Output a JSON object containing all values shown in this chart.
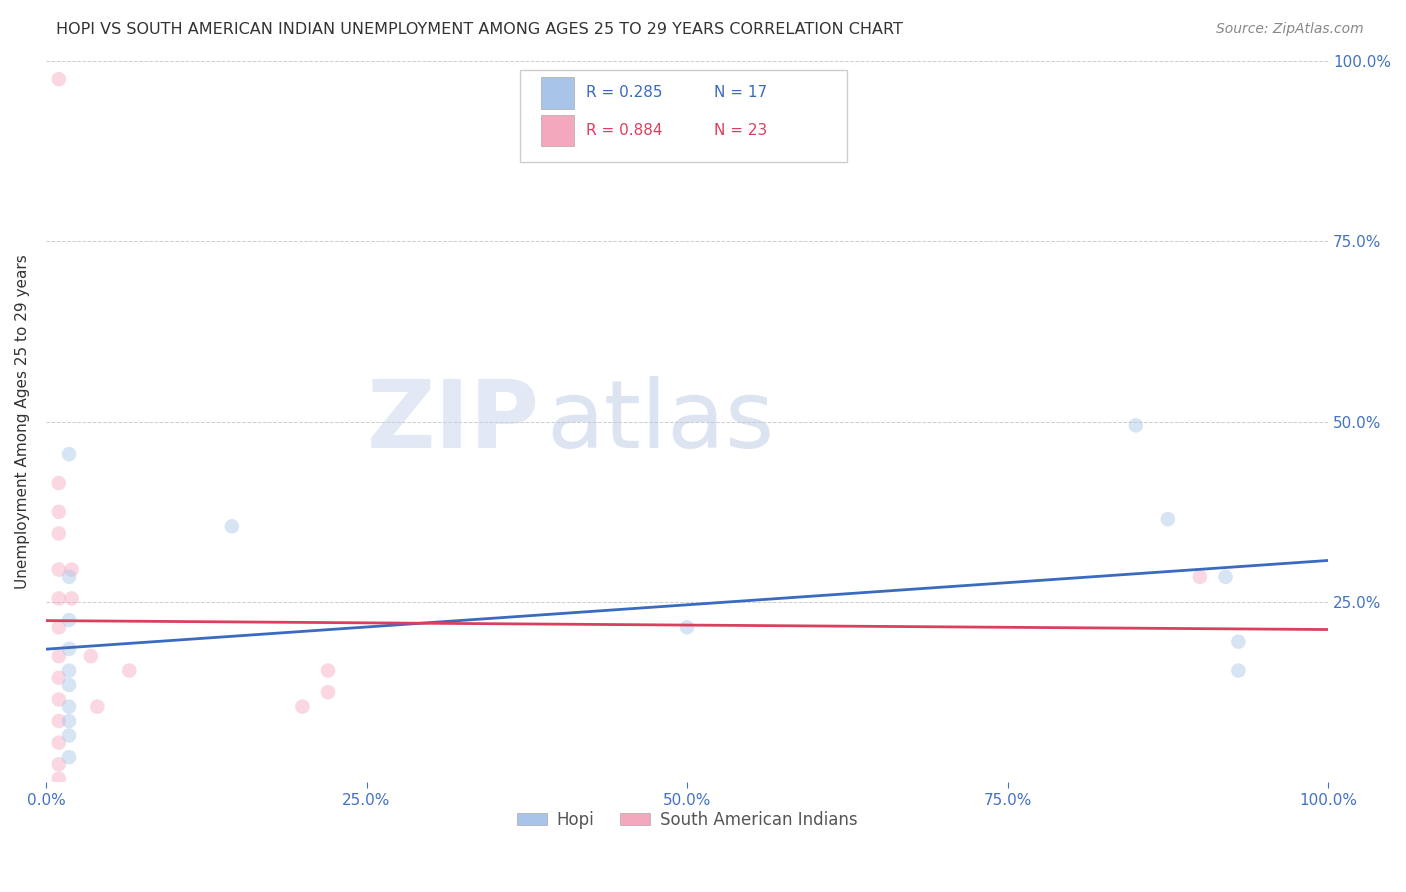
{
  "title": "HOPI VS SOUTH AMERICAN INDIAN UNEMPLOYMENT AMONG AGES 25 TO 29 YEARS CORRELATION CHART",
  "source": "Source: ZipAtlas.com",
  "ylabel": "Unemployment Among Ages 25 to 29 years",
  "watermark_zip": "ZIP",
  "watermark_atlas": "atlas",
  "hopi_R": 0.285,
  "hopi_N": 17,
  "sa_R": 0.884,
  "sa_N": 23,
  "hopi_color": "#a8c4e8",
  "sa_color": "#f4a8be",
  "hopi_line_color": "#3a6bbf",
  "sa_line_color": "#d94060",
  "axis_color": "#4472c4",
  "grid_color": "#c8c8c8",
  "hopi_points": [
    [
      0.018,
      0.455
    ],
    [
      0.018,
      0.285
    ],
    [
      0.018,
      0.225
    ],
    [
      0.018,
      0.185
    ],
    [
      0.018,
      0.155
    ],
    [
      0.018,
      0.135
    ],
    [
      0.018,
      0.105
    ],
    [
      0.018,
      0.085
    ],
    [
      0.018,
      0.065
    ],
    [
      0.018,
      0.035
    ],
    [
      0.145,
      0.355
    ],
    [
      0.5,
      0.215
    ],
    [
      0.85,
      0.495
    ],
    [
      0.875,
      0.365
    ],
    [
      0.92,
      0.285
    ],
    [
      0.93,
      0.195
    ],
    [
      0.93,
      0.155
    ]
  ],
  "sa_points": [
    [
      0.01,
      0.975
    ],
    [
      0.01,
      0.415
    ],
    [
      0.01,
      0.375
    ],
    [
      0.01,
      0.345
    ],
    [
      0.01,
      0.295
    ],
    [
      0.01,
      0.255
    ],
    [
      0.01,
      0.215
    ],
    [
      0.01,
      0.175
    ],
    [
      0.01,
      0.145
    ],
    [
      0.01,
      0.115
    ],
    [
      0.01,
      0.085
    ],
    [
      0.01,
      0.055
    ],
    [
      0.01,
      0.025
    ],
    [
      0.01,
      0.005
    ],
    [
      0.02,
      0.295
    ],
    [
      0.02,
      0.255
    ],
    [
      0.035,
      0.175
    ],
    [
      0.04,
      0.105
    ],
    [
      0.065,
      0.155
    ],
    [
      0.2,
      0.105
    ],
    [
      0.22,
      0.155
    ],
    [
      0.22,
      0.125
    ],
    [
      0.9,
      0.285
    ]
  ],
  "xlim": [
    0.0,
    1.0
  ],
  "ylim": [
    0.0,
    1.0
  ],
  "xticks": [
    0.0,
    0.25,
    0.5,
    0.75,
    1.0
  ],
  "yticks": [
    0.25,
    0.5,
    0.75,
    1.0
  ],
  "xtick_labels": [
    "0.0%",
    "25.0%",
    "50.0%",
    "75.0%",
    "100.0%"
  ],
  "ytick_labels_right": [
    "25.0%",
    "50.0%",
    "75.0%",
    "100.0%"
  ],
  "background_color": "#ffffff",
  "marker_size": 110,
  "marker_alpha": 0.45
}
